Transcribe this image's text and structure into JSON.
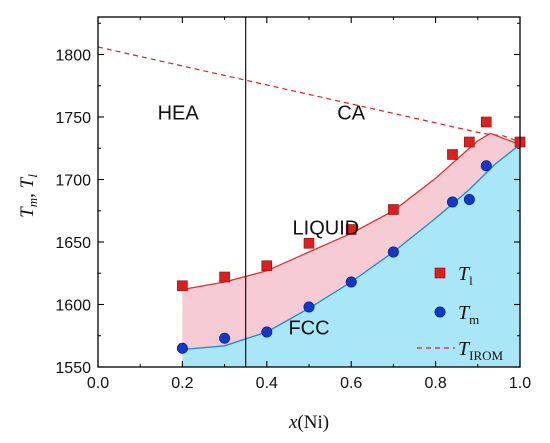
{
  "chart_data": {
    "type": "scatter",
    "xlabel": {
      "main": "x",
      "paren": "(Ni)"
    },
    "ylabel": {
      "t1": "T",
      "s1": "m",
      "sep": ", ",
      "t2": "T",
      "s2": "l"
    },
    "xlim": [
      0.0,
      1.0
    ],
    "ylim": [
      1550,
      1830
    ],
    "xticks": [
      "0.0",
      "0.2",
      "0.4",
      "0.6",
      "0.8",
      "1.0"
    ],
    "yticks": [
      "1550",
      "1600",
      "1650",
      "1700",
      "1750",
      "1800"
    ],
    "divider_x": 0.35,
    "regions": [
      {
        "label": "HEA",
        "x": 0.19,
        "y": 1748
      },
      {
        "label": "CA",
        "x": 0.6,
        "y": 1748
      },
      {
        "label": "LIQUID",
        "x": 0.54,
        "y": 1656
      },
      {
        "label": "FCC",
        "x": 0.5,
        "y": 1576
      }
    ],
    "series": [
      {
        "key": "Tl",
        "name": "T",
        "sub": "l",
        "marker": "square",
        "color": "#dd1f1f",
        "points": [
          [
            0.2,
            1615
          ],
          [
            0.3,
            1622
          ],
          [
            0.4,
            1631
          ],
          [
            0.5,
            1649
          ],
          [
            0.6,
            1660
          ],
          [
            0.7,
            1676
          ],
          [
            0.84,
            1720
          ],
          [
            0.88,
            1730
          ],
          [
            0.92,
            1746
          ],
          [
            1.0,
            1730
          ]
        ]
      },
      {
        "key": "Tm",
        "name": "T",
        "sub": "m",
        "marker": "circle",
        "color": "#1238c8",
        "points": [
          [
            0.2,
            1565
          ],
          [
            0.3,
            1573
          ],
          [
            0.4,
            1578
          ],
          [
            0.5,
            1598
          ],
          [
            0.6,
            1618
          ],
          [
            0.7,
            1642
          ],
          [
            0.84,
            1682
          ],
          [
            0.88,
            1684
          ],
          [
            0.92,
            1711
          ]
        ]
      },
      {
        "key": "TIROM",
        "name": "T",
        "sub": "IROM",
        "style": "dashed",
        "color": "#e02020",
        "points": [
          [
            0.0,
            1806
          ],
          [
            0.91,
            1737
          ],
          [
            0.93,
            1736
          ],
          [
            0.96,
            1735
          ],
          [
            1.0,
            1730
          ]
        ]
      }
    ],
    "liquidus_curve": [
      [
        0.2,
        1612
      ],
      [
        0.3,
        1618
      ],
      [
        0.4,
        1627
      ],
      [
        0.5,
        1642
      ],
      [
        0.6,
        1657
      ],
      [
        0.7,
        1675
      ],
      [
        0.8,
        1701
      ],
      [
        0.85,
        1716
      ],
      [
        0.9,
        1731
      ],
      [
        0.93,
        1737
      ],
      [
        0.96,
        1733
      ],
      [
        1.0,
        1728
      ]
    ],
    "solidus_curve": [
      [
        0.2,
        1564
      ],
      [
        0.3,
        1567
      ],
      [
        0.4,
        1578
      ],
      [
        0.5,
        1597
      ],
      [
        0.6,
        1618
      ],
      [
        0.7,
        1642
      ],
      [
        0.8,
        1669
      ],
      [
        0.88,
        1692
      ],
      [
        0.94,
        1712
      ],
      [
        1.0,
        1728
      ]
    ],
    "colors": {
      "liquid_fill": "#f4c2cd",
      "fcc_fill": "#a8e6f8",
      "liquidus_line": "#e03030",
      "solidus_line": "#1a8ad8",
      "axis": "#000000"
    },
    "legend": {
      "position": "bottom-right"
    }
  }
}
